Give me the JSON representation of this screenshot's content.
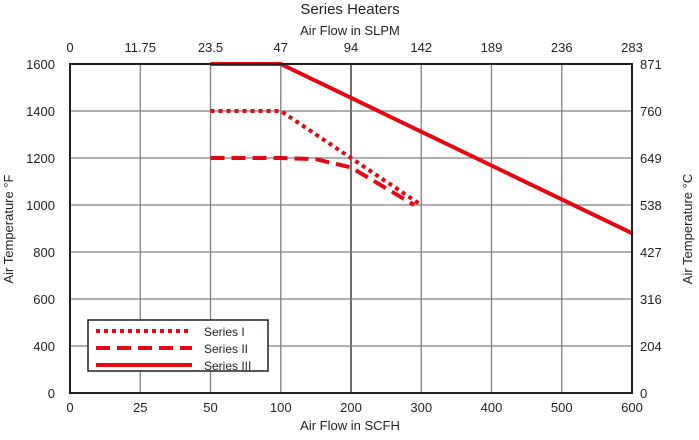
{
  "chart_data": {
    "type": "line",
    "title": "Series Heaters",
    "xlabel": "Air Flow in SCFH",
    "x2label": "Air Flow in SLPM",
    "ylabel": "Air Temperature °F",
    "y2label": "Air Temperature °C",
    "x_ticks": [
      0,
      25,
      50,
      100,
      200,
      300,
      400,
      500,
      600
    ],
    "x2_ticks": [
      "0",
      "11.75",
      "23.5",
      "47",
      "94",
      "142",
      "189",
      "236",
      "283"
    ],
    "y_ticks": [
      1600,
      1400,
      1200,
      1000,
      800,
      600,
      400,
      0
    ],
    "y2_ticks": [
      "871",
      "760",
      "649",
      "538",
      "427",
      "316",
      "204",
      "0"
    ],
    "grid": true,
    "legend_position": "bottom-left",
    "line_color": "#e30613",
    "series": [
      {
        "name": "Series I",
        "style": "dotted",
        "points": [
          [
            50,
            1400
          ],
          [
            100,
            1400
          ],
          [
            300,
            1000
          ]
        ]
      },
      {
        "name": "Series II",
        "style": "dashed",
        "points": [
          [
            50,
            1200
          ],
          [
            100,
            1200
          ],
          [
            150,
            1195
          ],
          [
            200,
            1160
          ],
          [
            290,
            1000
          ]
        ]
      },
      {
        "name": "Series III",
        "style": "solid",
        "points": [
          [
            50,
            1600
          ],
          [
            100,
            1600
          ],
          [
            600,
            880
          ]
        ]
      }
    ]
  }
}
